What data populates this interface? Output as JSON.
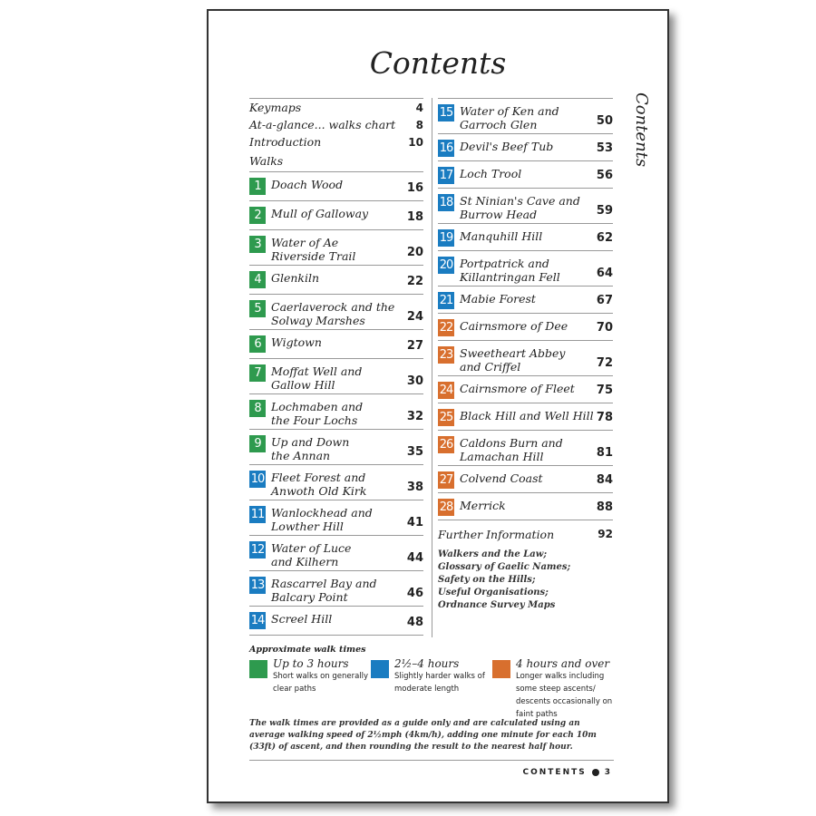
{
  "title": "Contents",
  "side_label": "Contents",
  "colors": {
    "green": "#2e9a4e",
    "blue": "#1a7cc1",
    "orange": "#d86f2e"
  },
  "front": [
    {
      "label": "Keymaps",
      "page": "4"
    },
    {
      "label": "At-a-glance... walks chart",
      "page": "8"
    },
    {
      "label": "Introduction",
      "page": "10"
    }
  ],
  "walks_heading": "Walks",
  "walks": [
    {
      "n": "1",
      "l1": "Doach Wood",
      "l2": "",
      "page": "16",
      "c": "green"
    },
    {
      "n": "2",
      "l1": "Mull of Galloway",
      "l2": "",
      "page": "18",
      "c": "green"
    },
    {
      "n": "3",
      "l1": "Water of Ae",
      "l2": "Riverside Trail",
      "page": "20",
      "c": "green"
    },
    {
      "n": "4",
      "l1": "Glenkiln",
      "l2": "",
      "page": "22",
      "c": "green"
    },
    {
      "n": "5",
      "l1": "Caerlaverock and the",
      "l2": "Solway Marshes",
      "page": "24",
      "c": "green"
    },
    {
      "n": "6",
      "l1": "Wigtown",
      "l2": "",
      "page": "27",
      "c": "green"
    },
    {
      "n": "7",
      "l1": "Moffat Well and",
      "l2": "Gallow Hill",
      "page": "30",
      "c": "green"
    },
    {
      "n": "8",
      "l1": "Lochmaben and",
      "l2": "the Four Lochs",
      "page": "32",
      "c": "green"
    },
    {
      "n": "9",
      "l1": "Up and Down",
      "l2": "the Annan",
      "page": "35",
      "c": "green"
    },
    {
      "n": "10",
      "l1": "Fleet Forest and",
      "l2": "Anwoth Old Kirk",
      "page": "38",
      "c": "blue"
    },
    {
      "n": "11",
      "l1": "Wanlockhead and",
      "l2": "Lowther Hill",
      "page": "41",
      "c": "blue"
    },
    {
      "n": "12",
      "l1": "Water of Luce",
      "l2": "and Kilhern",
      "page": "44",
      "c": "blue"
    },
    {
      "n": "13",
      "l1": "Rascarrel Bay and",
      "l2": "Balcary Point",
      "page": "46",
      "c": "blue"
    },
    {
      "n": "14",
      "l1": "Screel Hill",
      "l2": "",
      "page": "48",
      "c": "blue"
    },
    {
      "n": "15",
      "l1": "Water of Ken and",
      "l2": "Garroch Glen",
      "page": "50",
      "c": "blue"
    },
    {
      "n": "16",
      "l1": "Devil's Beef Tub",
      "l2": "",
      "page": "53",
      "c": "blue"
    },
    {
      "n": "17",
      "l1": "Loch Trool",
      "l2": "",
      "page": "56",
      "c": "blue"
    },
    {
      "n": "18",
      "l1": "St Ninian's Cave and",
      "l2": "Burrow Head",
      "page": "59",
      "c": "blue"
    },
    {
      "n": "19",
      "l1": "Manquhill Hill",
      "l2": "",
      "page": "62",
      "c": "blue"
    },
    {
      "n": "20",
      "l1": "Portpatrick and",
      "l2": "Killantringan Fell",
      "page": "64",
      "c": "blue"
    },
    {
      "n": "21",
      "l1": "Mabie Forest",
      "l2": "",
      "page": "67",
      "c": "blue"
    },
    {
      "n": "22",
      "l1": "Cairnsmore of Dee",
      "l2": "",
      "page": "70",
      "c": "orange"
    },
    {
      "n": "23",
      "l1": "Sweetheart Abbey",
      "l2": "and Criffel",
      "page": "72",
      "c": "orange"
    },
    {
      "n": "24",
      "l1": "Cairnsmore of Fleet",
      "l2": "",
      "page": "75",
      "c": "orange"
    },
    {
      "n": "25",
      "l1": "Black Hill and Well Hill",
      "l2": "",
      "page": "78",
      "c": "orange"
    },
    {
      "n": "26",
      "l1": "Caldons Burn and",
      "l2": "Lamachan Hill",
      "page": "81",
      "c": "orange"
    },
    {
      "n": "27",
      "l1": "Colvend Coast",
      "l2": "",
      "page": "84",
      "c": "orange"
    },
    {
      "n": "28",
      "l1": "Merrick",
      "l2": "",
      "page": "88",
      "c": "orange"
    }
  ],
  "further": {
    "label": "Further Information",
    "page": "92",
    "items": [
      "Walkers and the Law;",
      "Glossary of Gaelic Names;",
      "Safety on the Hills;",
      "Useful Organisations;",
      "Ordnance Survey Maps"
    ]
  },
  "legend": {
    "title": "Approximate walk times",
    "items": [
      {
        "c": "green",
        "head": "Up to 3 hours",
        "desc": "Short walks on generally clear paths"
      },
      {
        "c": "blue",
        "head": "2½–4 hours",
        "desc": "Slightly harder walks of moderate length"
      },
      {
        "c": "orange",
        "head": "4 hours and over",
        "desc": "Longer walks including some steep ascents/ descents occasionally on faint paths"
      }
    ]
  },
  "note": "The walk times are provided as a guide only and are calculated using an average walking speed of 2½mph (4km/h), adding one minute for each 10m (33ft) of ascent, and then rounding the result to the nearest half hour.",
  "footer": {
    "label": "CONTENTS",
    "page": "3"
  }
}
